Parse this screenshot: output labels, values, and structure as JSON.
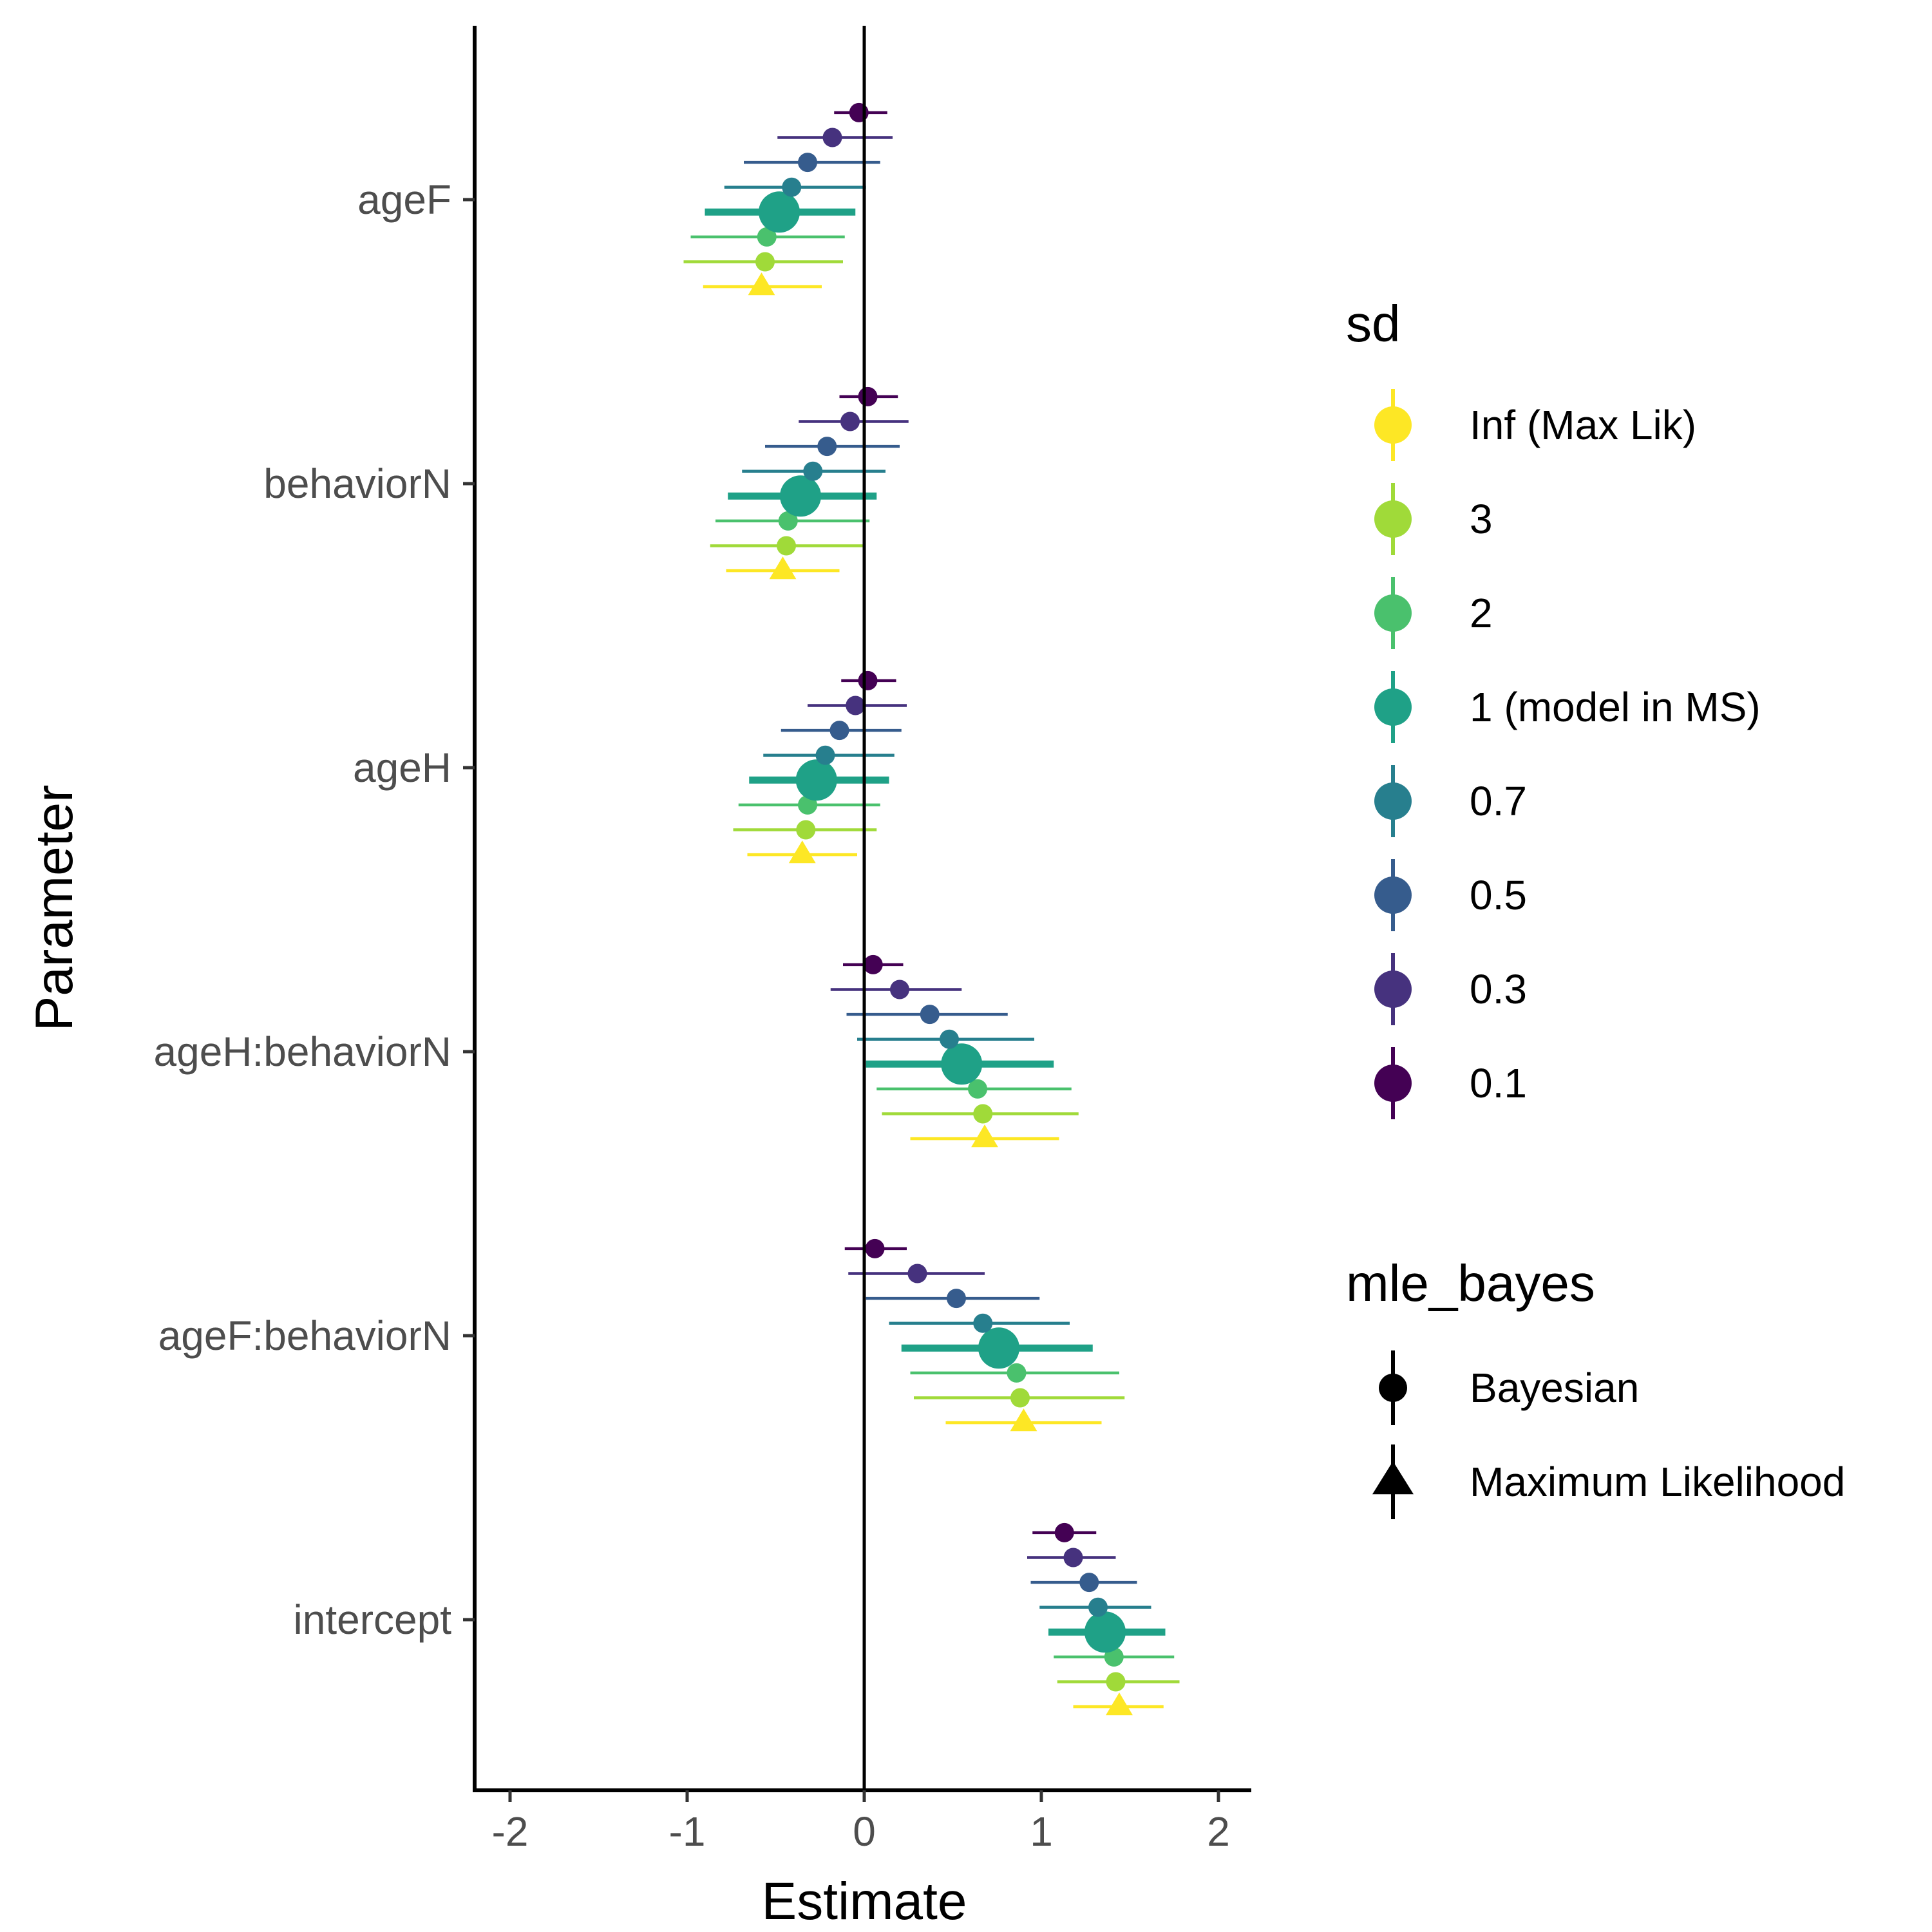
{
  "chart_data": {
    "type": "scatter",
    "subtype": "forest-plot with horizontal error bars (dodged by sd)",
    "xlabel": "Estimate",
    "ylabel": "Parameter",
    "xlim": [
      -2.2,
      2.2
    ],
    "x_ticks": [
      "-2",
      "-1",
      "0",
      "1",
      "2"
    ],
    "x_tick_values": [
      -2,
      -1,
      0,
      1,
      2
    ],
    "reference_line_x": 0,
    "grid": false,
    "legend_placement": "right",
    "parameters": [
      "ageF",
      "behaviorN",
      "ageH",
      "ageH:behaviorN",
      "ageF:behaviorN",
      "intercept"
    ],
    "sd_levels": [
      "Inf (Max Lik)",
      "3",
      "2",
      "1 (model in MS)",
      "0.7",
      "0.5",
      "0.3",
      "0.1"
    ],
    "sd_colors": [
      "#FDE725",
      "#A0DA39",
      "#4AC16D",
      "#1FA187",
      "#277F8E",
      "#365C8D",
      "#46327E",
      "#440154"
    ],
    "highlight_level": "1 (model in MS)",
    "legends": [
      {
        "title": "sd",
        "entries": [
          "Inf (Max Lik)",
          "3",
          "2",
          "1 (model in MS)",
          "0.7",
          "0.5",
          "0.3",
          "0.1"
        ]
      },
      {
        "title": "mle_bayes",
        "entries": [
          "Bayesian",
          "Maximum Likelihood"
        ],
        "shapes": [
          "circle",
          "triangle"
        ]
      }
    ],
    "series": [
      {
        "name": "Inf (Max Lik)",
        "mle_bayes": "Maximum Likelihood",
        "estimate": [
          -0.58,
          -0.46,
          -0.35,
          0.68,
          0.9,
          1.44
        ],
        "lower": [
          -0.91,
          -0.78,
          -0.66,
          0.26,
          0.46,
          1.18
        ],
        "upper": [
          -0.24,
          -0.14,
          -0.04,
          1.1,
          1.34,
          1.69
        ]
      },
      {
        "name": "3",
        "mle_bayes": "Bayesian",
        "estimate": [
          -0.56,
          -0.44,
          -0.33,
          0.67,
          0.88,
          1.42
        ],
        "lower": [
          -1.02,
          -0.87,
          -0.74,
          0.1,
          0.28,
          1.09
        ],
        "upper": [
          -0.12,
          0,
          0.07,
          1.21,
          1.47,
          1.78
        ]
      },
      {
        "name": "2",
        "mle_bayes": "Bayesian",
        "estimate": [
          -0.55,
          -0.43,
          -0.32,
          0.64,
          0.86,
          1.41
        ],
        "lower": [
          -0.98,
          -0.84,
          -0.71,
          0.07,
          0.26,
          1.07
        ],
        "upper": [
          -0.11,
          0.03,
          0.09,
          1.17,
          1.44,
          1.75
        ]
      },
      {
        "name": "1 (model in MS)",
        "mle_bayes": "Bayesian",
        "estimate": [
          -0.48,
          -0.36,
          -0.27,
          0.55,
          0.76,
          1.36
        ],
        "lower": [
          -0.9,
          -0.77,
          -0.65,
          0.01,
          0.21,
          1.04
        ],
        "upper": [
          -0.05,
          0.07,
          0.14,
          1.07,
          1.29,
          1.7
        ]
      },
      {
        "name": "0.7",
        "mle_bayes": "Bayesian",
        "estimate": [
          -0.41,
          -0.29,
          -0.22,
          0.48,
          0.67,
          1.32
        ],
        "lower": [
          -0.79,
          -0.69,
          -0.57,
          -0.04,
          0.14,
          0.99
        ],
        "upper": [
          0.01,
          0.12,
          0.17,
          0.96,
          1.16,
          1.62
        ]
      },
      {
        "name": "0.5",
        "mle_bayes": "Bayesian",
        "estimate": [
          -0.32,
          -0.21,
          -0.14,
          0.37,
          0.52,
          1.27
        ],
        "lower": [
          -0.68,
          -0.56,
          -0.47,
          -0.1,
          0.01,
          0.94
        ],
        "upper": [
          0.09,
          0.2,
          0.21,
          0.81,
          0.99,
          1.54
        ]
      },
      {
        "name": "0.3",
        "mle_bayes": "Bayesian",
        "estimate": [
          -0.18,
          -0.08,
          -0.05,
          0.2,
          0.3,
          1.18
        ],
        "lower": [
          -0.49,
          -0.37,
          -0.32,
          -0.19,
          -0.09,
          0.92
        ],
        "upper": [
          0.16,
          0.25,
          0.24,
          0.55,
          0.68,
          1.42
        ]
      },
      {
        "name": "0.1",
        "mle_bayes": "Bayesian",
        "estimate": [
          -0.03,
          0.02,
          0.02,
          0.05,
          0.06,
          1.13
        ],
        "lower": [
          -0.17,
          -0.14,
          -0.13,
          -0.12,
          -0.11,
          0.95
        ],
        "upper": [
          0.13,
          0.19,
          0.18,
          0.22,
          0.24,
          1.31
        ]
      }
    ]
  }
}
